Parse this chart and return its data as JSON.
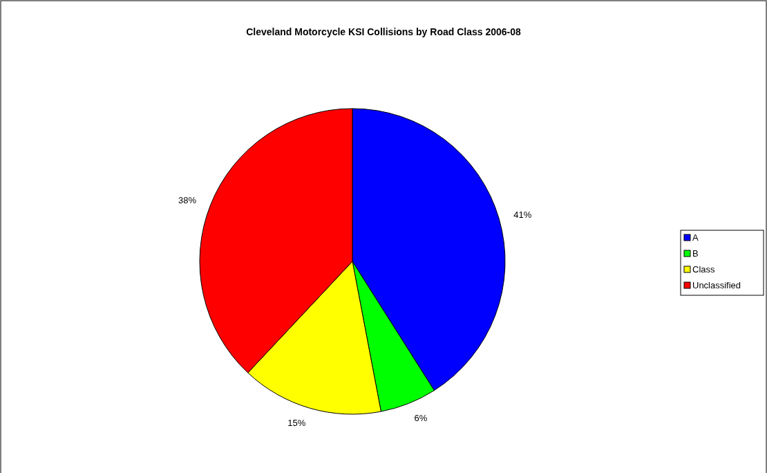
{
  "chart_data": {
    "type": "pie",
    "title": "Cleveland Motorcycle KSI Collisions by Road Class 2006-08",
    "categories": [
      "A",
      "B",
      "Class",
      "Unclassified"
    ],
    "values": [
      41,
      6,
      15,
      38
    ],
    "colors": [
      "#0000ff",
      "#00ff00",
      "#ffff00",
      "#ff0000"
    ],
    "value_labels": [
      "41%",
      "6%",
      "15%",
      "38%"
    ],
    "legend": "right"
  }
}
